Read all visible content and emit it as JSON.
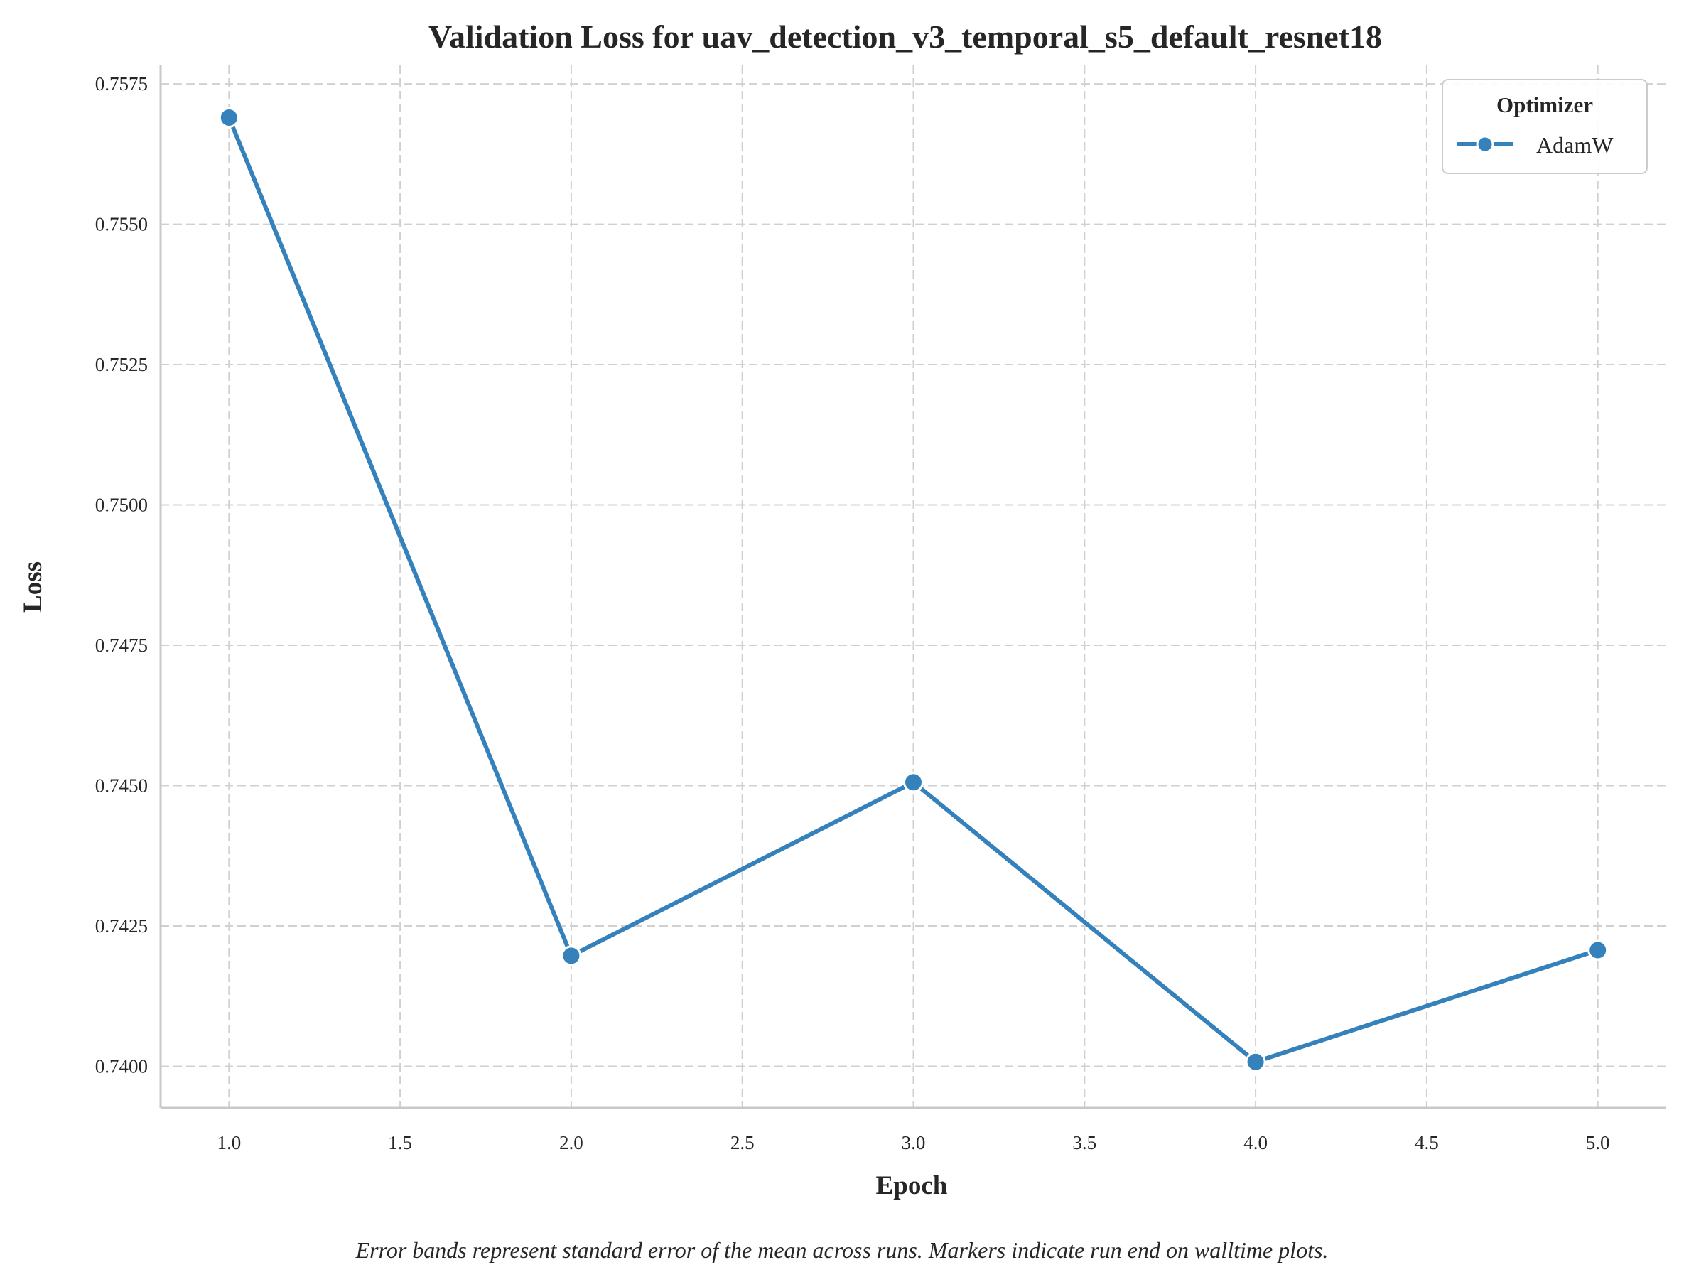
{
  "chart_data": {
    "type": "line",
    "title": "Validation Loss for uav_detection_v3_temporal_s5_default_resnet18",
    "xlabel": "Epoch",
    "ylabel": "Loss",
    "xlim": [
      0.8,
      5.2
    ],
    "ylim": [
      0.73926,
      0.75783
    ],
    "xticks": [
      1.0,
      1.5,
      2.0,
      2.5,
      3.0,
      3.5,
      4.0,
      4.5,
      5.0
    ],
    "xtick_labels": [
      "1.0",
      "1.5",
      "2.0",
      "2.5",
      "3.0",
      "3.5",
      "4.0",
      "4.5",
      "5.0"
    ],
    "yticks": [
      0.74,
      0.7425,
      0.745,
      0.7475,
      0.75,
      0.7525,
      0.755,
      0.7575
    ],
    "ytick_labels": [
      "0.7400",
      "0.7425",
      "0.7450",
      "0.7475",
      "0.7500",
      "0.7525",
      "0.7550",
      "0.7575"
    ],
    "grid": true,
    "legend": {
      "title": "Optimizer",
      "placement": "top-right"
    },
    "series": [
      {
        "name": "AdamW",
        "color": "#3581bb",
        "x": [
          1.0,
          2.0,
          3.0,
          4.0,
          5.0
        ],
        "y": [
          0.7569,
          0.74197,
          0.74506,
          0.74008,
          0.74207
        ]
      }
    ],
    "caption": "Error bands represent standard error of the mean across runs. Markers indicate run end on walltime plots."
  }
}
